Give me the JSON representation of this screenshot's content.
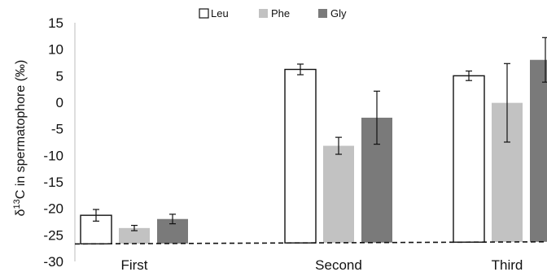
{
  "chart_data": {
    "type": "bar",
    "categories": [
      "First",
      "Second",
      "Third"
    ],
    "series": [
      {
        "name": "Leu",
        "values": [
          -21.3,
          6.2,
          5.0
        ],
        "errors": [
          1.1,
          1.0,
          0.9
        ],
        "color": "#ffffff",
        "stroke": "#111111"
      },
      {
        "name": "Phe",
        "values": [
          -23.7,
          -8.2,
          -0.1
        ],
        "errors": [
          0.5,
          1.6,
          7.4
        ],
        "color": "#c2c2c2",
        "stroke": "none"
      },
      {
        "name": "Gly",
        "values": [
          -22.0,
          -2.9,
          8.0
        ],
        "errors": [
          0.9,
          5.0,
          4.2
        ],
        "color": "#7a7a7a",
        "stroke": "none"
      }
    ],
    "ylabel_prefix": "δ",
    "ylabel_sup": "13",
    "ylabel_main": "C in spermatophore (‰)",
    "ylim": [
      -30,
      15
    ],
    "yticks": [
      "15",
      "10",
      "5",
      "0",
      "-5",
      "-10",
      "-15",
      "-20",
      "-25",
      "-30"
    ],
    "ytick_values": [
      15,
      10,
      5,
      0,
      -5,
      -10,
      -15,
      -20,
      -25,
      -30
    ],
    "reference_line": {
      "y_start": -26.7,
      "y_end": -26.3,
      "style": "dashed"
    },
    "legend_position": "top-center",
    "grid": false
  }
}
